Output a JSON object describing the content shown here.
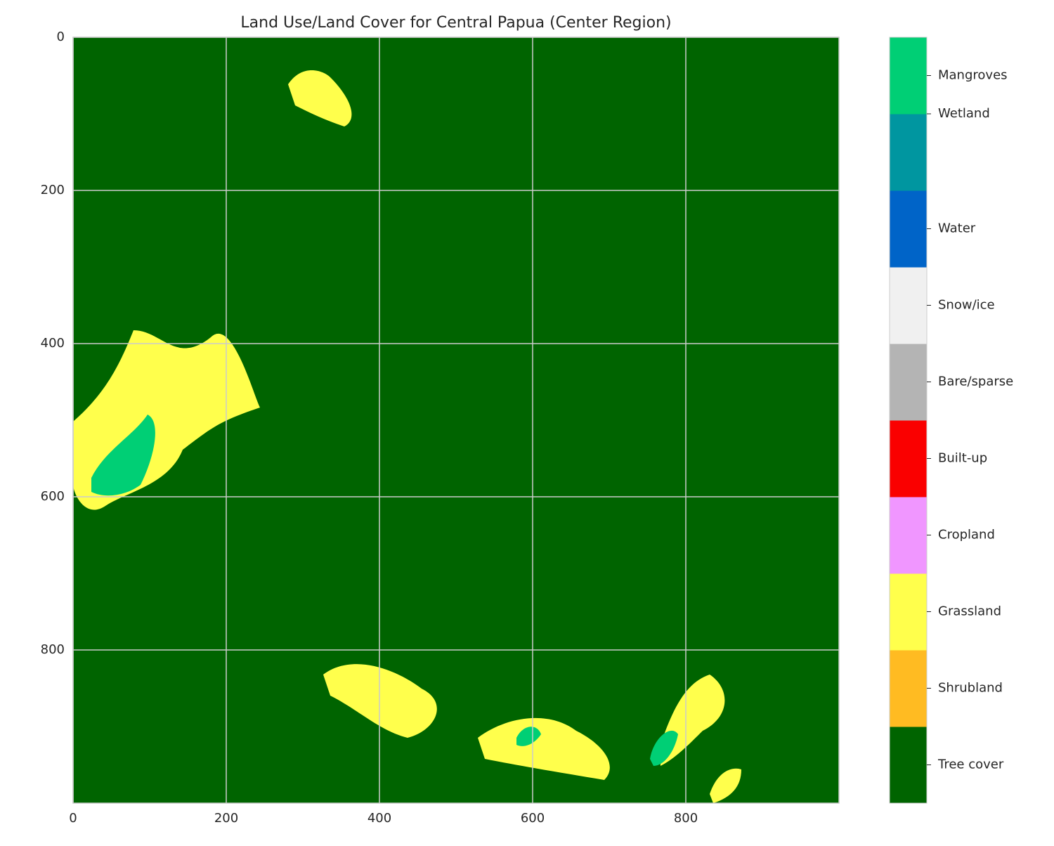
{
  "chart_data": {
    "type": "image",
    "title": "Land Use/Land Cover for Central Papua (Center Region)",
    "xlim": [
      0,
      1000
    ],
    "ylim": [
      1000,
      0
    ],
    "xticks": [
      0,
      200,
      400,
      600,
      800
    ],
    "yticks": [
      0,
      200,
      400,
      600,
      800
    ],
    "grid": true,
    "background_color": "#006400",
    "colorbar": {
      "bounds": [
        5,
        15,
        25,
        35,
        45,
        55,
        65,
        75,
        85,
        90,
        100
      ],
      "colors": [
        "#006400",
        "#ffbb22",
        "#ffff4c",
        "#f096ff",
        "#fa0000",
        "#b4b4b4",
        "#f0f0f0",
        "#0064c8",
        "#0096a0",
        "#00cf75"
      ],
      "ticks": [
        {
          "value": 10,
          "label": "Tree cover"
        },
        {
          "value": 20,
          "label": "Shrubland"
        },
        {
          "value": 30,
          "label": "Grassland"
        },
        {
          "value": 40,
          "label": "Cropland"
        },
        {
          "value": 50,
          "label": "Built-up"
        },
        {
          "value": 60,
          "label": "Bare/sparse"
        },
        {
          "value": 70,
          "label": "Snow/ice"
        },
        {
          "value": 80,
          "label": "Water"
        },
        {
          "value": 90,
          "label": "Wetland"
        },
        {
          "value": 95,
          "label": "Mangroves"
        }
      ]
    }
  }
}
